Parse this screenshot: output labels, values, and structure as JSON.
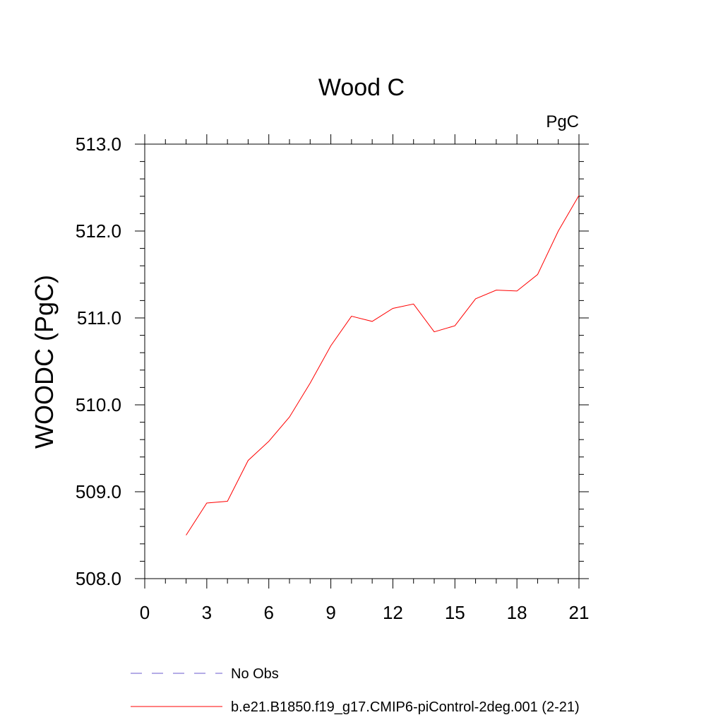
{
  "chart_data": {
    "type": "line",
    "title": "Wood C",
    "units_label": "PgC",
    "xlabel": "",
    "ylabel": "WOODC  (PgC)",
    "xlim": [
      0,
      21
    ],
    "ylim": [
      508.0,
      513.0
    ],
    "x_ticks": [
      0,
      3,
      6,
      9,
      12,
      15,
      18,
      21
    ],
    "x_tick_labels": [
      "0",
      "3",
      "6",
      "9",
      "12",
      "15",
      "18",
      "21"
    ],
    "y_ticks": [
      508.0,
      509.0,
      510.0,
      511.0,
      512.0,
      513.0
    ],
    "y_tick_labels": [
      "508.0",
      "509.0",
      "510.0",
      "511.0",
      "512.0",
      "513.0"
    ],
    "grid": false,
    "series": [
      {
        "name": "b.e21.B1850.f19_g17.CMIP6-piControl-2deg.001 (2-21)",
        "color": "#ff0000",
        "style": "solid",
        "x": [
          2,
          3,
          4,
          5,
          6,
          7,
          8,
          9,
          10,
          11,
          12,
          13,
          14,
          15,
          16,
          17,
          18,
          19,
          20,
          21
        ],
        "y": [
          508.5,
          508.87,
          508.89,
          509.36,
          509.58,
          509.86,
          510.25,
          510.68,
          511.02,
          510.96,
          511.11,
          511.16,
          510.84,
          510.91,
          511.22,
          511.32,
          511.31,
          511.5,
          512.0,
          512.41
        ]
      }
    ],
    "legend": {
      "placement": "bottom",
      "entries": [
        {
          "label": "No Obs",
          "color": "#6a5acd",
          "style": "dashed"
        },
        {
          "label": "b.e21.B1850.f19_g17.CMIP6-piControl-2deg.001 (2-21)",
          "color": "#ff0000",
          "style": "solid"
        }
      ]
    }
  }
}
